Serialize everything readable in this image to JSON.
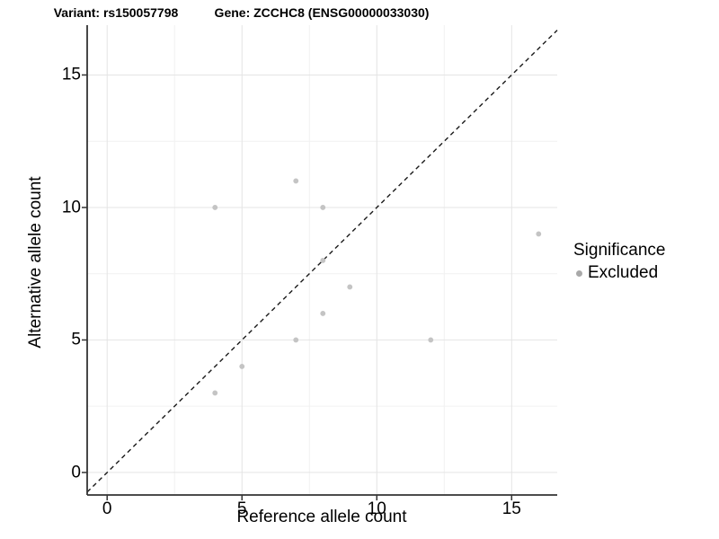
{
  "chart_data": {
    "type": "scatter",
    "title": "Variant: rs150057798",
    "title_right": "Gene: ZCCHC8 (ENSG00000033030)",
    "xlabel": "Reference allele count",
    "ylabel": "Alternative allele count",
    "series": [
      {
        "name": "Excluded",
        "points": [
          [
            4,
            3
          ],
          [
            4,
            10
          ],
          [
            5,
            4
          ],
          [
            7,
            5
          ],
          [
            7,
            11
          ],
          [
            8,
            6
          ],
          [
            8,
            8
          ],
          [
            8,
            10
          ],
          [
            9,
            7
          ],
          [
            12,
            5
          ],
          [
            16,
            9
          ]
        ]
      }
    ],
    "reference_line": {
      "type": "identity y=x",
      "style": "dashed",
      "color": "#1a1a1a"
    },
    "x_ticks": [
      0,
      5,
      10,
      15
    ],
    "y_ticks": [
      0,
      5,
      10,
      15
    ],
    "x_minor_gridlines": [
      2.5,
      7.5,
      12.5
    ],
    "y_minor_gridlines": [
      2.5,
      7.5,
      12.5
    ],
    "xlim": [
      -0.74,
      16.69
    ],
    "ylim": [
      -0.85,
      16.88
    ],
    "grid": true,
    "legend": {
      "title": "Significance",
      "position": "right",
      "items": [
        {
          "label": "Excluded",
          "color": "#A9A9A9"
        }
      ]
    },
    "colors": {
      "point": "#C4C4C4",
      "grid_major": "#E4E4E4",
      "grid_minor": "#F1F1F1",
      "axis_line": "#333333",
      "tick_mark": "#333333",
      "text": "#000000",
      "background": "#FFFFFF"
    }
  }
}
